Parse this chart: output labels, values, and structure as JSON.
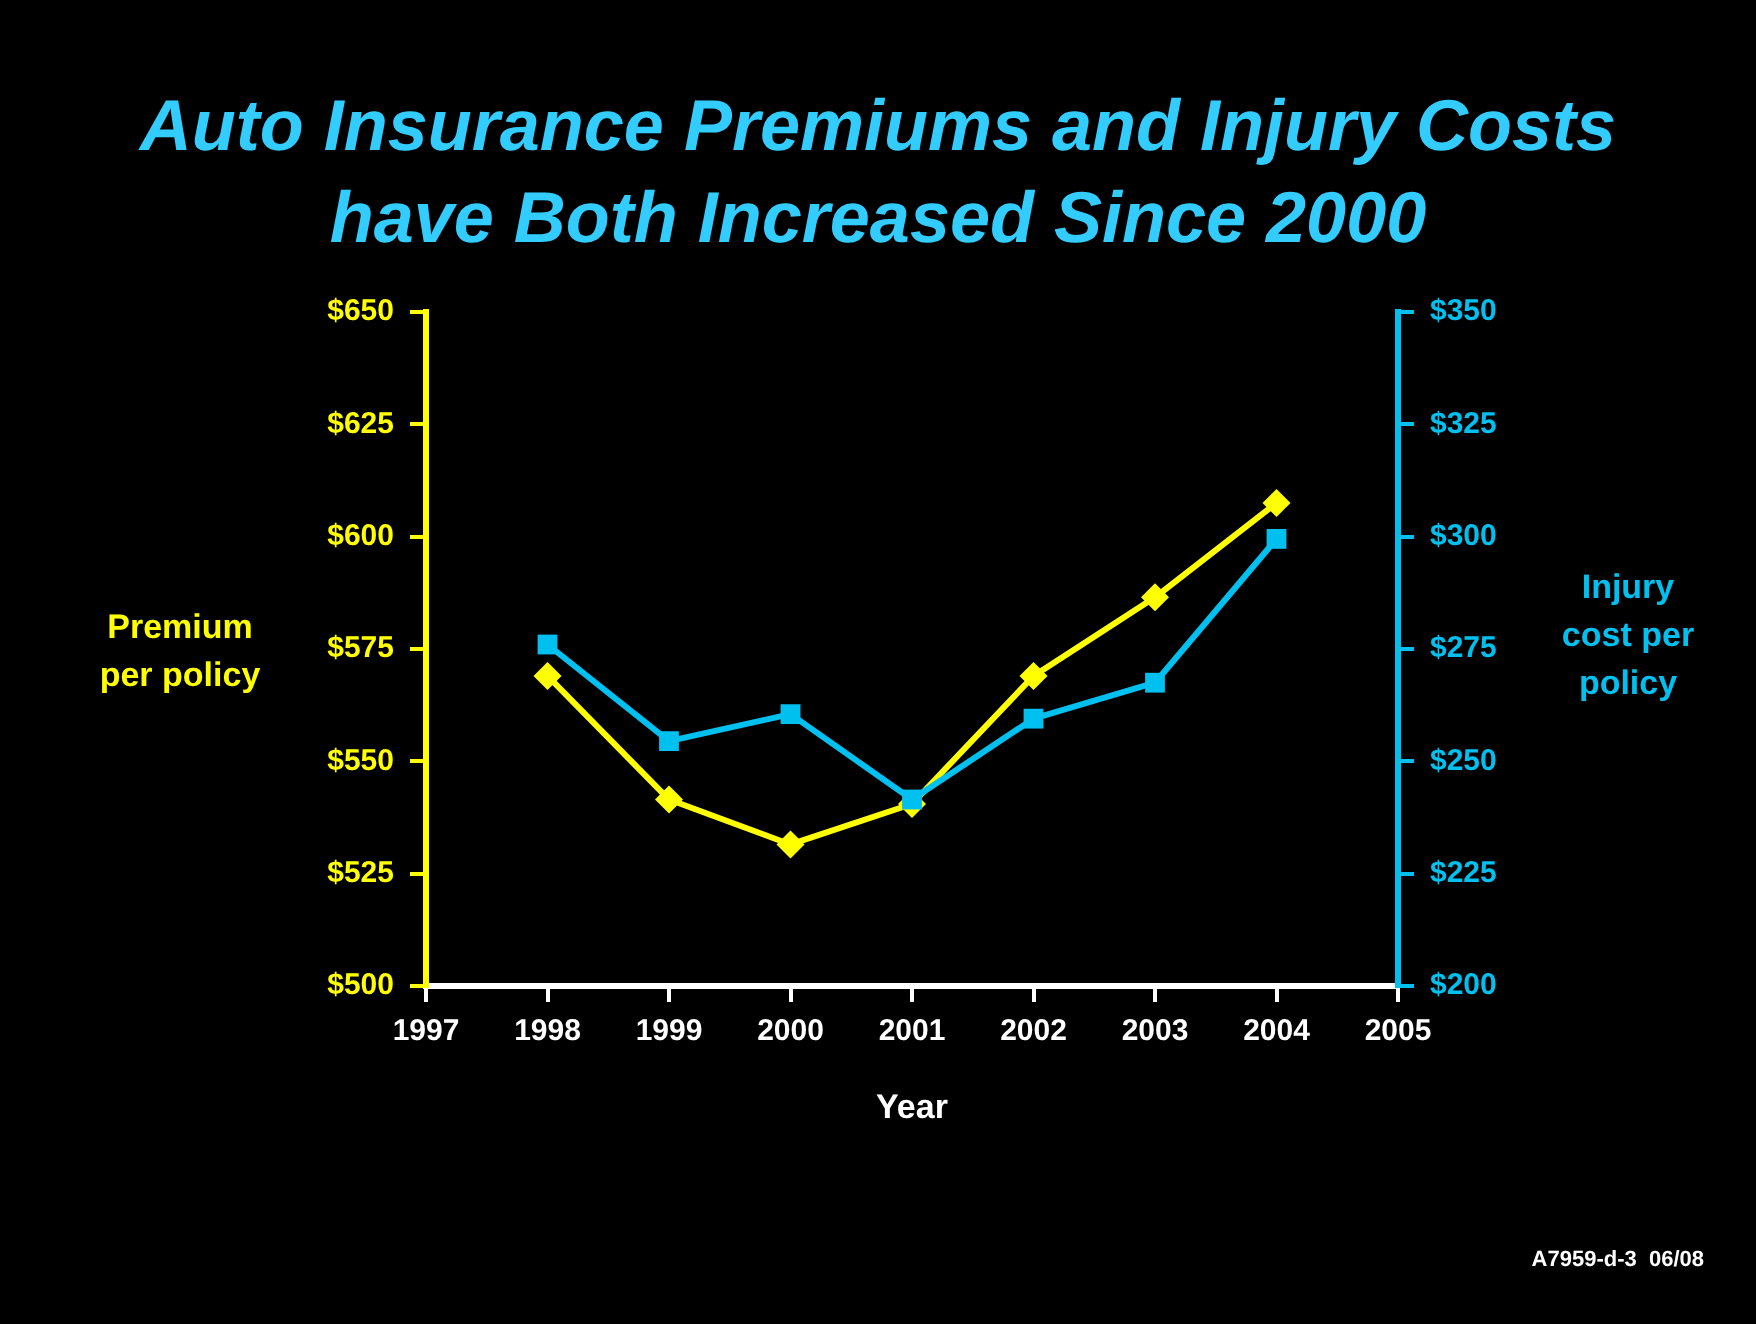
{
  "chart_data": {
    "type": "line",
    "title": "Auto Insurance Premiums and Injury Costs have Both Increased Since 2000",
    "xlabel": "Year",
    "ylabel": "Premium per policy",
    "y2label": "Injury cost per policy",
    "annotations": [
      "A7959-d-3  06/08"
    ],
    "x": [
      1998,
      1999,
      2000,
      2001,
      2002,
      2003,
      2004
    ],
    "series": [
      {
        "name": null,
        "color": "#ffff00",
        "marker": "diamond",
        "values": [
          569,
          541.5,
          531.5,
          540.5,
          569,
          586.5,
          607.5
        ]
      },
      {
        "name": null,
        "color": "#00c0f0",
        "marker": "square",
        "axis": "y2",
        "values": [
          276,
          254.5,
          260.5,
          241.5,
          259.5,
          267.5,
          299.5
        ]
      }
    ],
    "xlim": [
      1997,
      2005
    ],
    "xticks": [
      1997,
      1998,
      1999,
      2000,
      2001,
      2002,
      2003,
      2004,
      2005
    ],
    "ylim": [
      500,
      650
    ],
    "yticks": [
      {
        "value": 500,
        "label": "$500"
      },
      {
        "value": 525,
        "label": "$525"
      },
      {
        "value": 550,
        "label": "$550"
      },
      {
        "value": 575,
        "label": "$575"
      },
      {
        "value": 600,
        "label": "$600"
      },
      {
        "value": 625,
        "label": "$625"
      },
      {
        "value": 650,
        "label": "$650"
      }
    ],
    "y2lim": [
      200,
      350
    ],
    "y2ticks": [
      {
        "value": 200,
        "label": "$200"
      },
      {
        "value": 225,
        "label": "$225"
      },
      {
        "value": 250,
        "label": "$250"
      },
      {
        "value": 275,
        "label": "$275"
      },
      {
        "value": 300,
        "label": "$300"
      },
      {
        "value": 325,
        "label": "$325"
      },
      {
        "value": 350,
        "label": "$350"
      }
    ],
    "grid": false,
    "legend": false
  }
}
